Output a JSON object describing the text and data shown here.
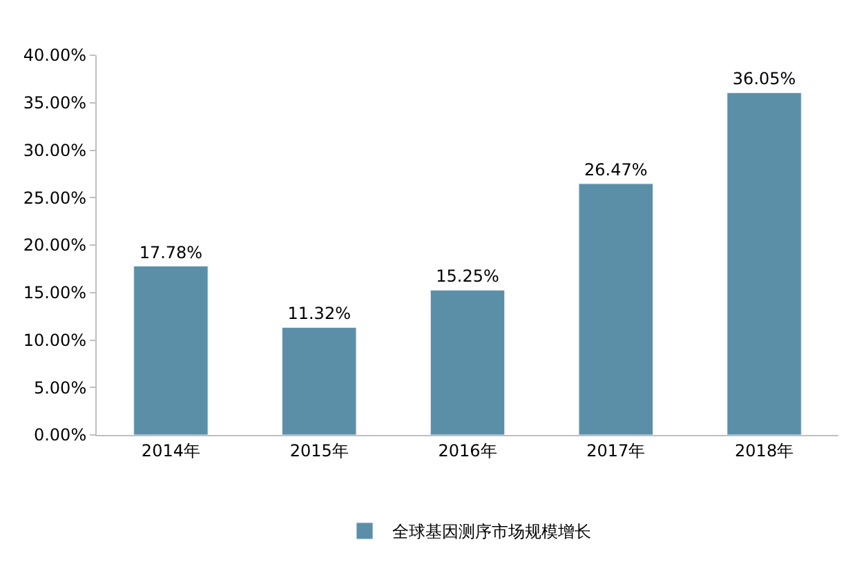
{
  "chart_data": {
    "type": "bar",
    "categories": [
      "2014年",
      "2015年",
      "2016年",
      "2017年",
      "2018年"
    ],
    "series": [
      {
        "name": "全球基因测序市场规模增长",
        "color": "#5b8fa8",
        "values": [
          17.78,
          11.32,
          15.25,
          26.47,
          36.05
        ],
        "value_labels": [
          "17.78%",
          "11.32%",
          "15.25%",
          "26.47%",
          "36.05%"
        ]
      }
    ],
    "ylim": [
      0,
      40
    ],
    "yticks": [
      {
        "value": 0,
        "label": "0.00%"
      },
      {
        "value": 5,
        "label": "5.00%"
      },
      {
        "value": 10,
        "label": "10.00%"
      },
      {
        "value": 15,
        "label": "15.00%"
      },
      {
        "value": 20,
        "label": "20.00%"
      },
      {
        "value": 25,
        "label": "25.00%"
      },
      {
        "value": 30,
        "label": "30.00%"
      },
      {
        "value": 35,
        "label": "35.00%"
      },
      {
        "value": 40,
        "label": "40.00%"
      }
    ],
    "legend": "bottom"
  }
}
